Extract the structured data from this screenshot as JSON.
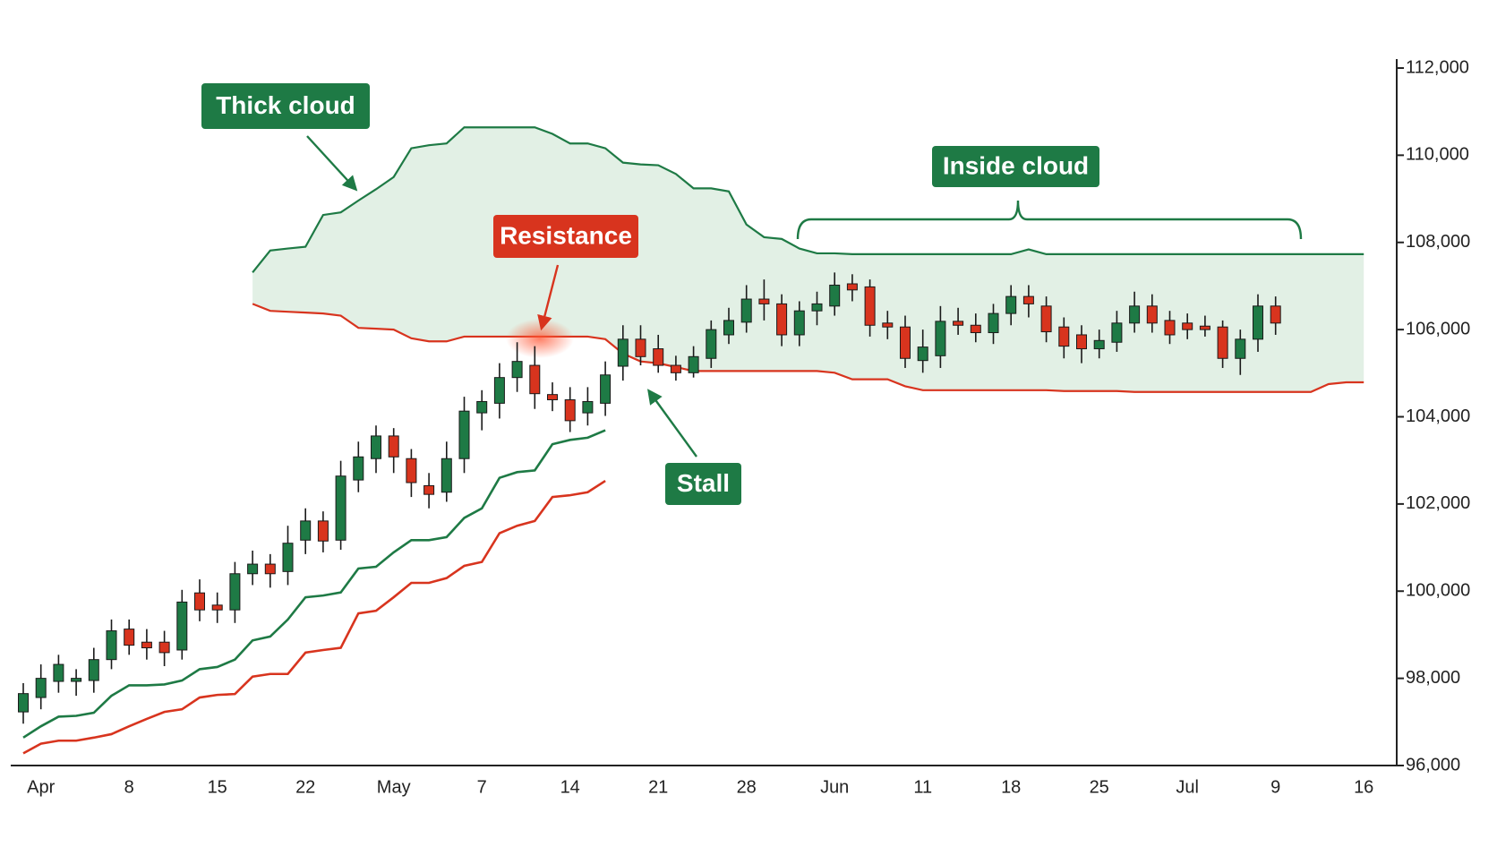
{
  "chart_data": {
    "type": "candlestick",
    "categories": [
      null,
      "Apr",
      null,
      null,
      null,
      null,
      "8",
      null,
      null,
      null,
      null,
      "15",
      null,
      null,
      null,
      null,
      "22",
      null,
      null,
      null,
      null,
      "May",
      null,
      null,
      null,
      null,
      "7",
      null,
      null,
      null,
      null,
      "14",
      null,
      null,
      null,
      null,
      "21",
      null,
      null,
      null,
      null,
      "28",
      null,
      null,
      null,
      null,
      "Jun",
      null,
      null,
      null,
      null,
      "11",
      null,
      null,
      null,
      null,
      "18",
      null,
      null,
      null,
      null,
      "25",
      null,
      null,
      null,
      null,
      "Jul",
      null,
      null,
      null,
      null,
      "9",
      null,
      null,
      null,
      null,
      "16"
    ],
    "open": [
      97230,
      97560,
      97930,
      97930,
      97950,
      98430,
      99130,
      98830,
      98830,
      98650,
      99960,
      99680,
      99570,
      100400,
      100620,
      100450,
      101170,
      101610,
      101170,
      102550,
      103040,
      103560,
      103040,
      102420,
      102270,
      103040,
      104090,
      104310,
      104900,
      105180,
      104510,
      104390,
      104090,
      104310,
      105160,
      105780,
      105560,
      105180,
      105010,
      105340,
      105880,
      106170,
      106700,
      106590,
      105880,
      106430,
      106540,
      107050,
      106980,
      106150,
      106060,
      105290,
      105400,
      106190,
      106100,
      105930,
      106370,
      106760,
      106540,
      106060,
      105880,
      105560,
      105710,
      106150,
      106540,
      106210,
      106150,
      106080,
      106060,
      105340,
      105780,
      106540,
      null,
      null,
      null,
      null,
      null
    ],
    "high": [
      97890,
      98320,
      98540,
      98210,
      98700,
      99350,
      99350,
      99130,
      99090,
      100030,
      100270,
      99970,
      100670,
      100930,
      100850,
      101500,
      101900,
      101830,
      102990,
      103430,
      103800,
      103740,
      103260,
      102710,
      103430,
      104460,
      104610,
      105230,
      105710,
      105620,
      104790,
      104680,
      104680,
      105270,
      106100,
      106100,
      105880,
      105400,
      105620,
      106210,
      106500,
      107020,
      107150,
      106810,
      106650,
      106870,
      107310,
      107270,
      107150,
      106430,
      106320,
      106000,
      106540,
      106500,
      106370,
      106590,
      107020,
      107020,
      106760,
      106280,
      106100,
      106000,
      106430,
      106870,
      106810,
      106430,
      106370,
      106320,
      106210,
      106000,
      106810,
      106760,
      null,
      null,
      null,
      null,
      null
    ],
    "low": [
      96960,
      97290,
      97670,
      97600,
      97670,
      98210,
      98540,
      98430,
      98280,
      98430,
      99310,
      99270,
      99270,
      100140,
      100080,
      100140,
      100850,
      100890,
      100950,
      102270,
      102710,
      102710,
      102160,
      101900,
      102050,
      102710,
      103690,
      103960,
      104570,
      104180,
      104130,
      103650,
      103800,
      104020,
      104830,
      105180,
      105010,
      104830,
      104900,
      105120,
      105670,
      105930,
      106210,
      105620,
      105620,
      106100,
      106320,
      106650,
      105840,
      105780,
      105120,
      105010,
      105120,
      105880,
      105710,
      105670,
      106100,
      106280,
      105710,
      105340,
      105230,
      105340,
      105490,
      105930,
      105930,
      105670,
      105780,
      105840,
      105120,
      104960,
      105490,
      105880,
      null,
      null,
      null,
      null,
      null
    ],
    "close": [
      97650,
      98000,
      98320,
      98000,
      98430,
      99090,
      98760,
      98700,
      98590,
      99750,
      99570,
      99570,
      100400,
      100620,
      100400,
      101100,
      101610,
      101150,
      102640,
      103080,
      103560,
      103080,
      102490,
      102220,
      103040,
      104130,
      104350,
      104900,
      105270,
      104530,
      104390,
      103910,
      104350,
      104960,
      105780,
      105380,
      105180,
      105010,
      105380,
      106000,
      106210,
      106700,
      106590,
      105880,
      106430,
      106590,
      107020,
      106910,
      106100,
      106060,
      105340,
      105600,
      106190,
      106100,
      105930,
      106370,
      106760,
      106590,
      105950,
      105620,
      105560,
      105750,
      106150,
      106540,
      106150,
      105880,
      106000,
      106000,
      105340,
      105780,
      106540,
      106150,
      null,
      null,
      null,
      null,
      null
    ],
    "up_color": "#1e7a45",
    "down_color": "#d8341e",
    "cloud": {
      "fill": "#e2f0e5",
      "upper_color": "#1e7a45",
      "lower_color": "#d8341e",
      "upper": [
        null,
        null,
        null,
        null,
        null,
        null,
        null,
        null,
        null,
        null,
        null,
        null,
        null,
        107310,
        107815,
        107860,
        107900,
        108630,
        108690,
        108960,
        109220,
        109500,
        110160,
        110230,
        110270,
        110640,
        110640,
        110640,
        110640,
        110640,
        110490,
        110270,
        110270,
        110160,
        109830,
        109790,
        109770,
        109570,
        109240,
        109240,
        109170,
        108410,
        108120,
        108080,
        107860,
        107750,
        107750,
        107730,
        107730,
        107730,
        107730,
        107730,
        107730,
        107730,
        107730,
        107730,
        107730,
        107840,
        107730,
        107730,
        107730,
        107730,
        107730,
        107730,
        107730,
        107730,
        107730,
        107730,
        107730,
        107730,
        107730,
        107730,
        107730,
        107730,
        107730,
        107730,
        107730
      ],
      "lower": [
        null,
        null,
        null,
        null,
        null,
        null,
        null,
        null,
        null,
        null,
        null,
        null,
        null,
        106590,
        106430,
        106410,
        106390,
        106370,
        106320,
        106040,
        106020,
        106000,
        105800,
        105730,
        105730,
        105840,
        105840,
        105840,
        105840,
        105840,
        105840,
        105840,
        105840,
        105780,
        105450,
        105270,
        105230,
        105140,
        105050,
        105050,
        105050,
        105050,
        105050,
        105050,
        105050,
        105050,
        105010,
        104860,
        104860,
        104860,
        104700,
        104610,
        104610,
        104610,
        104610,
        104610,
        104610,
        104610,
        104610,
        104590,
        104590,
        104590,
        104590,
        104570,
        104570,
        104570,
        104570,
        104570,
        104570,
        104570,
        104570,
        104570,
        104570,
        104570,
        104750,
        104790,
        104790
      ]
    },
    "lines": [
      {
        "color": "#1e7a45",
        "values": [
          96640,
          96900,
          97120,
          97140,
          97210,
          97600,
          97840,
          97840,
          97860,
          97950,
          98210,
          98260,
          98430,
          98870,
          98960,
          99350,
          99860,
          99900,
          99970,
          100520,
          100560,
          100890,
          101170,
          101170,
          101240,
          101680,
          101900,
          102600,
          102730,
          102770,
          103370,
          103470,
          103520,
          103690,
          null,
          null,
          null,
          null,
          null,
          null,
          null,
          null,
          null,
          null,
          null,
          null,
          null,
          null,
          null,
          null,
          null,
          null,
          null,
          null,
          null,
          null,
          null,
          null,
          null,
          null,
          null,
          null,
          null,
          null,
          null,
          null,
          null,
          null,
          null,
          null,
          null,
          null,
          null,
          null,
          null,
          null,
          null
        ]
      },
      {
        "color": "#d8341e",
        "values": [
          96280,
          96500,
          96570,
          96570,
          96640,
          96720,
          96900,
          97070,
          97230,
          97290,
          97560,
          97620,
          97640,
          98040,
          98100,
          98100,
          98590,
          98650,
          98700,
          99490,
          99550,
          99860,
          100190,
          100190,
          100300,
          100580,
          100670,
          101330,
          101500,
          101610,
          102160,
          102200,
          102270,
          102530,
          null,
          null,
          null,
          null,
          null,
          null,
          null,
          null,
          null,
          null,
          null,
          null,
          null,
          null,
          null,
          null,
          null,
          null,
          null,
          null,
          null,
          null,
          null,
          null,
          null,
          null,
          null,
          null,
          null,
          null,
          null,
          null,
          null,
          null,
          null,
          null,
          null,
          null,
          null,
          null,
          null,
          null,
          null
        ]
      }
    ],
    "ylim": [
      96000,
      112000
    ],
    "yticks": [
      {
        "value": 96000,
        "label": "96,000"
      },
      {
        "value": 98000,
        "label": "98,000"
      },
      {
        "value": 100000,
        "label": "100,000"
      },
      {
        "value": 102000,
        "label": "102,000"
      },
      {
        "value": 104000,
        "label": "104,000"
      },
      {
        "value": 106000,
        "label": "106,000"
      },
      {
        "value": 108000,
        "label": "108,000"
      },
      {
        "value": 110000,
        "label": "110,000"
      },
      {
        "value": 112000,
        "label": "112,000"
      }
    ],
    "y_axis_side": "right",
    "annotations": [
      {
        "text": "Thick cloud",
        "color": "#1e7a45"
      },
      {
        "text": "Resistance",
        "color": "#d8341e"
      },
      {
        "text": "Inside cloud",
        "color": "#1e7a45"
      },
      {
        "text": "Stall",
        "color": "#1e7a45"
      }
    ]
  }
}
